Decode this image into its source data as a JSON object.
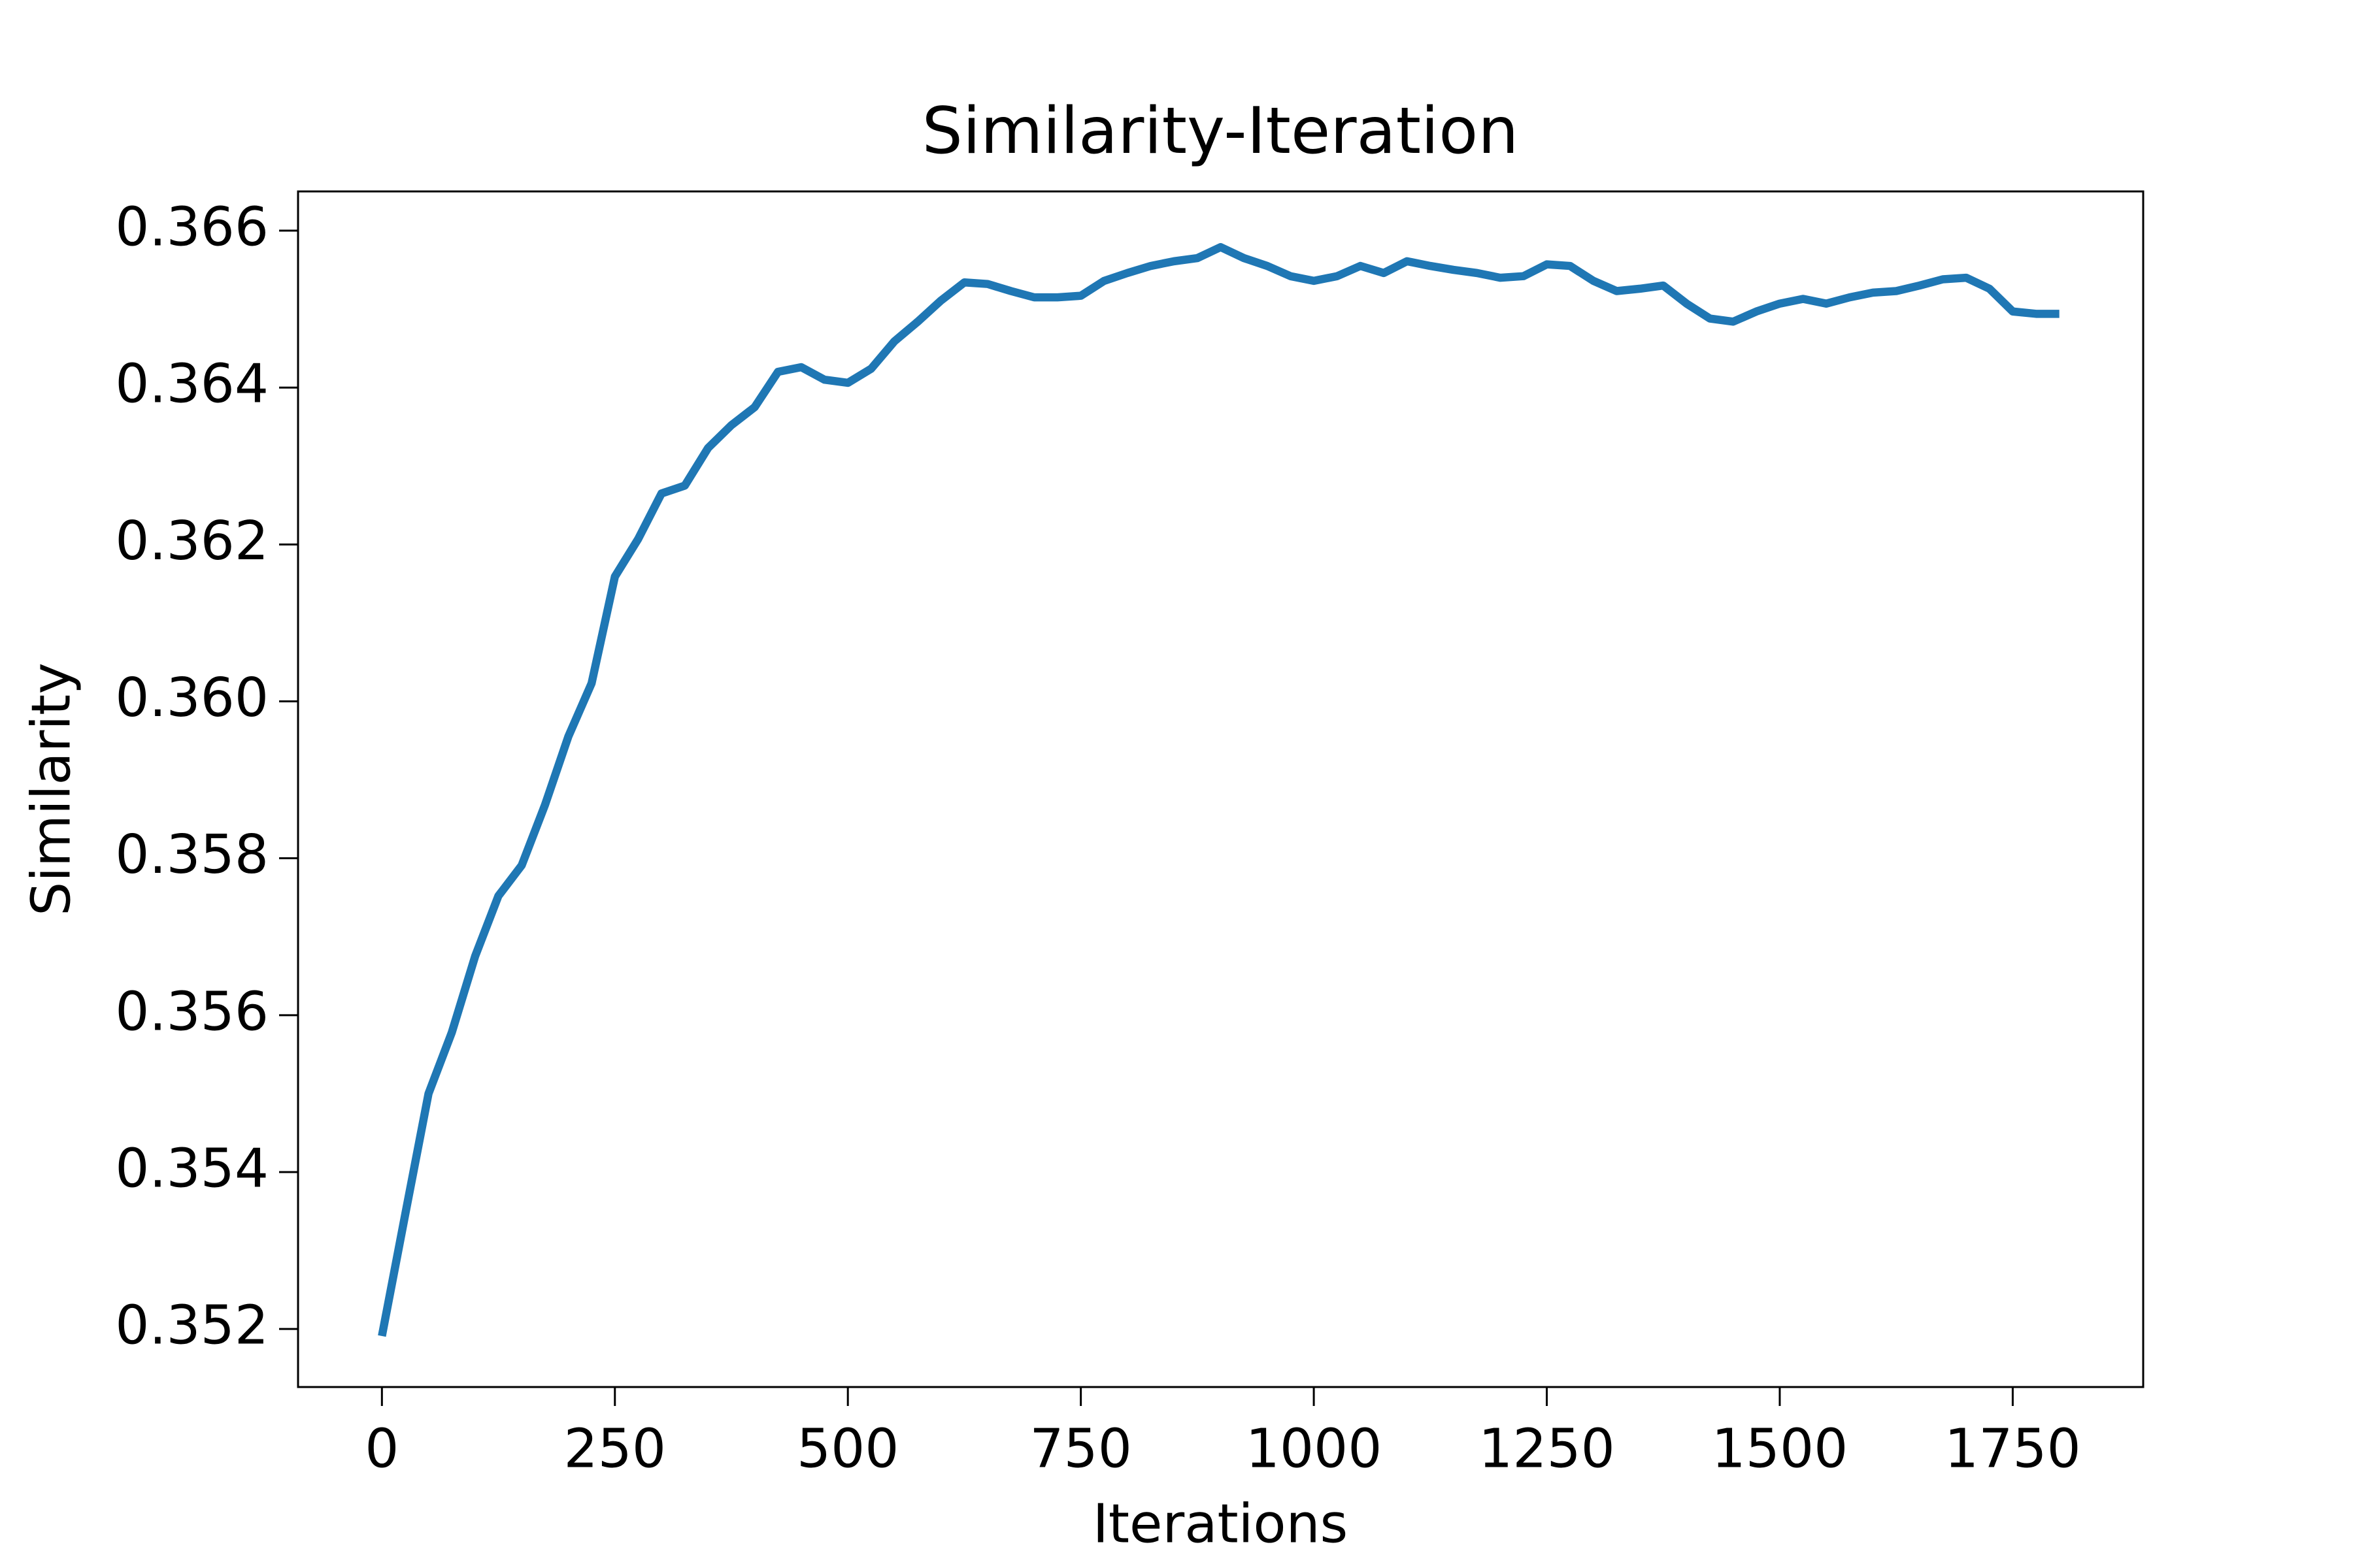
{
  "chart_data": {
    "type": "line",
    "title": "Similarity-Iteration",
    "x_label": "Iterations",
    "y_label": "Similarity",
    "x": [
      0,
      25,
      50,
      75,
      100,
      125,
      150,
      175,
      200,
      225,
      250,
      275,
      300,
      325,
      350,
      375,
      400,
      425,
      450,
      475,
      500,
      525,
      550,
      575,
      600,
      625,
      650,
      675,
      700,
      725,
      750,
      775,
      800,
      825,
      850,
      875,
      900,
      925,
      950,
      975,
      1000,
      1025,
      1050,
      1075,
      1100,
      1125,
      1150,
      1175,
      1200,
      1225,
      1250,
      1275,
      1300,
      1325,
      1350,
      1375,
      1400,
      1425,
      1450,
      1475,
      1500,
      1525,
      1550,
      1575,
      1600,
      1625,
      1650,
      1675,
      1700,
      1725,
      1750,
      1775,
      1800
    ],
    "series": [
      {
        "name": "Similarity",
        "color": "#1f77b4",
        "values": [
          0.35191,
          0.35346,
          0.355,
          0.35578,
          0.35675,
          0.35752,
          0.35791,
          0.35868,
          0.35955,
          0.36023,
          0.36159,
          0.36207,
          0.36265,
          0.36275,
          0.36323,
          0.36352,
          0.36375,
          0.3642,
          0.36426,
          0.3641,
          0.36406,
          0.36424,
          0.36459,
          0.36484,
          0.36511,
          0.36534,
          0.36532,
          0.36523,
          0.36515,
          0.36515,
          0.36517,
          0.36536,
          0.36546,
          0.36555,
          0.36561,
          0.36565,
          0.36579,
          0.36565,
          0.36555,
          0.36542,
          0.36536,
          0.36542,
          0.36555,
          0.36546,
          0.36561,
          0.36555,
          0.3655,
          0.36546,
          0.3654,
          0.36542,
          0.36557,
          0.36555,
          0.36536,
          0.36523,
          0.36526,
          0.3653,
          0.36507,
          0.36488,
          0.36484,
          0.36497,
          0.36507,
          0.36513,
          0.36507,
          0.36515,
          0.36521,
          0.36523,
          0.3653,
          0.36538,
          0.3654,
          0.36526,
          0.36497,
          0.36494,
          0.36494
        ]
      }
    ],
    "xlim": [
      -90,
      1890
    ],
    "ylim": [
      0.35126,
      0.3665
    ],
    "xticks": [
      0,
      250,
      500,
      750,
      1000,
      1250,
      1500,
      1750
    ],
    "yticks": [
      {
        "value": 0.352,
        "label": "0.352"
      },
      {
        "value": 0.354,
        "label": "0.354"
      },
      {
        "value": 0.356,
        "label": "0.356"
      },
      {
        "value": 0.358,
        "label": "0.358"
      },
      {
        "value": 0.36,
        "label": "0.360"
      },
      {
        "value": 0.362,
        "label": "0.362"
      },
      {
        "value": 0.364,
        "label": "0.364"
      },
      {
        "value": 0.366,
        "label": "0.366"
      }
    ],
    "grid": false
  }
}
